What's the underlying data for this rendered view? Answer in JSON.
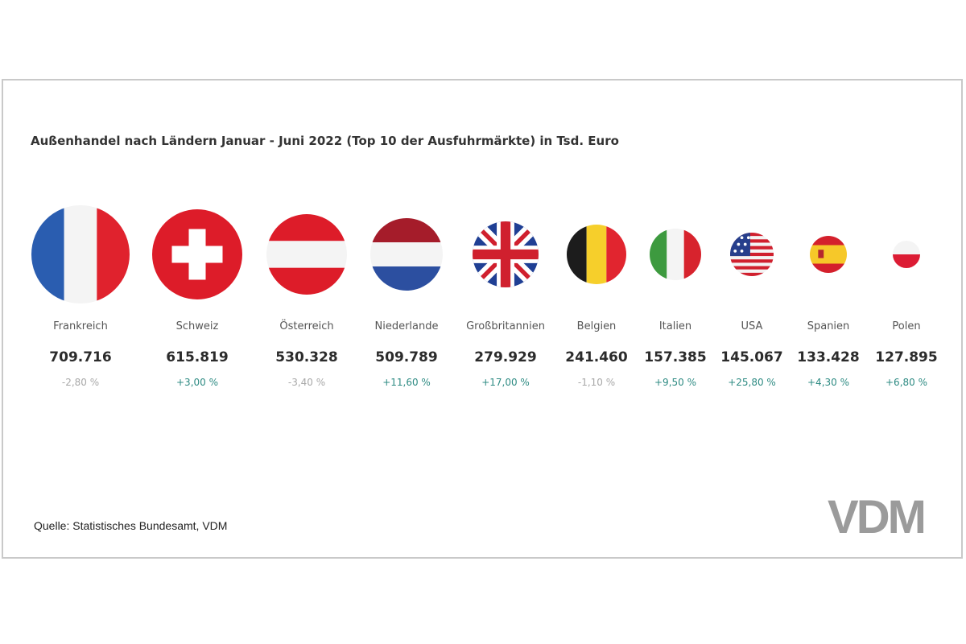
{
  "chart_data": {
    "type": "table",
    "title": "Außenhandel nach Ländern Januar - Juni 2022 (Top 10 der Ausfuhrmärkte) in Tsd. Euro",
    "categories": [
      "Frankreich",
      "Schweiz",
      "Österreich",
      "Niederlande",
      "Großbritannien",
      "Belgien",
      "Italien",
      "USA",
      "Spanien",
      "Polen"
    ],
    "values": [
      709716,
      615819,
      530328,
      509789,
      279929,
      241460,
      157385,
      145067,
      133428,
      127895
    ],
    "value_labels": [
      "709.716",
      "615.819",
      "530.328",
      "509.789",
      "279.929",
      "241.460",
      "157.385",
      "145.067",
      "133.428",
      "127.895"
    ],
    "change_labels": [
      "-2,80 %",
      "+3,00 %",
      "-3,40 %",
      "+11,60 %",
      "+17,00 %",
      "-1,10 %",
      "+9,50 %",
      "+25,80 %",
      "+4,30 %",
      "+6,80 %"
    ],
    "change_values": [
      -2.8,
      3.0,
      -3.4,
      11.6,
      17.0,
      -1.1,
      9.5,
      25.8,
      4.3,
      6.8
    ],
    "flags": [
      "france-flag-icon",
      "switzerland-flag-icon",
      "austria-flag-icon",
      "netherlands-flag-icon",
      "uk-flag-icon",
      "belgium-flag-icon",
      "italy-flag-icon",
      "usa-flag-icon",
      "spain-flag-icon",
      "poland-flag-icon"
    ]
  },
  "source": "Quelle: Statistisches Bundesamt, VDM",
  "logo_text": "VDM",
  "colors": {
    "positive": "#2e8b83",
    "negative": "#a8a8a8",
    "logo": "#9b9b9b"
  }
}
